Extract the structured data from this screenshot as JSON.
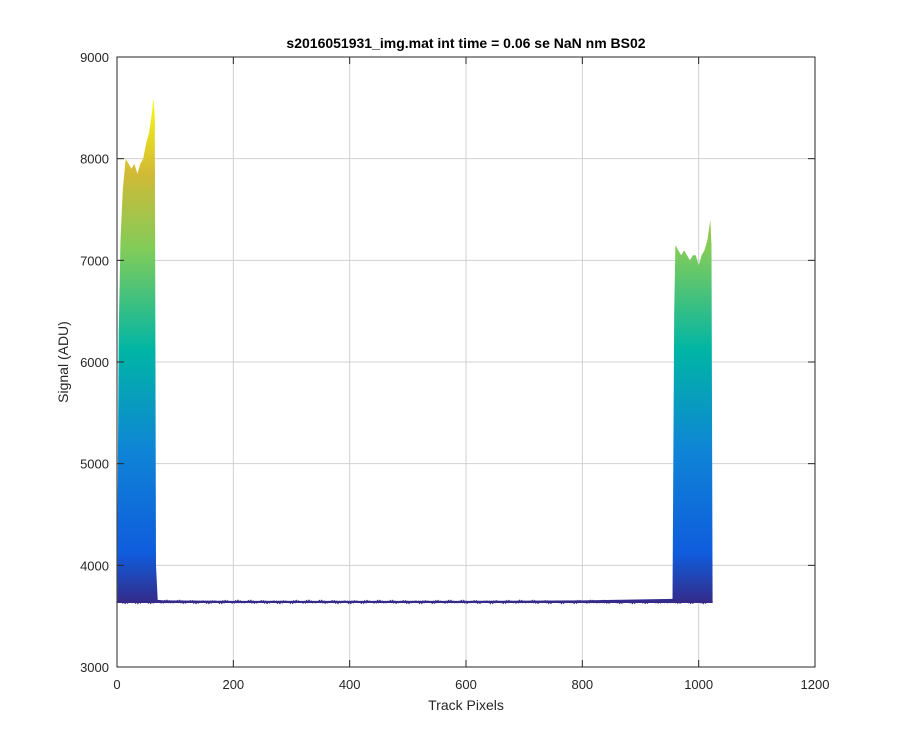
{
  "chart_data": {
    "type": "area",
    "title": "s2016051931_img.mat int time = 0.06 se  NaN nm BS02",
    "xlabel": "Track Pixels",
    "ylabel": "Signal (ADU)",
    "xlim": [
      0,
      1200
    ],
    "ylim": [
      3000,
      9000
    ],
    "xticks": [
      0,
      200,
      400,
      600,
      800,
      1000,
      1200
    ],
    "yticks": [
      3000,
      4000,
      5000,
      6000,
      7000,
      8000,
      9000
    ],
    "grid": true,
    "colormap": "parula",
    "baseline": 3640,
    "x": [
      1,
      3,
      6,
      10,
      15,
      20,
      25,
      30,
      35,
      40,
      45,
      50,
      55,
      60,
      63,
      65,
      67,
      70,
      80,
      200,
      400,
      600,
      800,
      955,
      958,
      960,
      965,
      970,
      975,
      980,
      985,
      990,
      995,
      1000,
      1005,
      1010,
      1015,
      1020,
      1022,
      1024
    ],
    "upper": [
      4500,
      6300,
      7200,
      7700,
      8000,
      7950,
      7900,
      7950,
      7850,
      7950,
      8000,
      8150,
      8250,
      8450,
      8600,
      8400,
      4000,
      3660,
      3655,
      3650,
      3650,
      3650,
      3655,
      3670,
      6500,
      7150,
      7100,
      7050,
      7100,
      7050,
      7000,
      7050,
      7050,
      6950,
      7050,
      7100,
      7200,
      7400,
      7150,
      3650
    ],
    "lower": [
      3630,
      3630,
      3630,
      3630,
      3630,
      3630,
      3630,
      3630,
      3630,
      3630,
      3630,
      3630,
      3630,
      3630,
      3630,
      3630,
      3630,
      3630,
      3630,
      3630,
      3630,
      3630,
      3630,
      3630,
      3630,
      3630,
      3630,
      3630,
      3630,
      3630,
      3630,
      3630,
      3630,
      3630,
      3630,
      3630,
      3630,
      3630,
      3630,
      3630
    ],
    "colors": {
      "dark_blue": "#352a87",
      "blue": "#0f5cdd",
      "cyan": "#00b5a5",
      "green": "#81cc59",
      "yellow": "#f9fb0e",
      "grid": "#d0d0d0",
      "axis": "#262626"
    }
  }
}
